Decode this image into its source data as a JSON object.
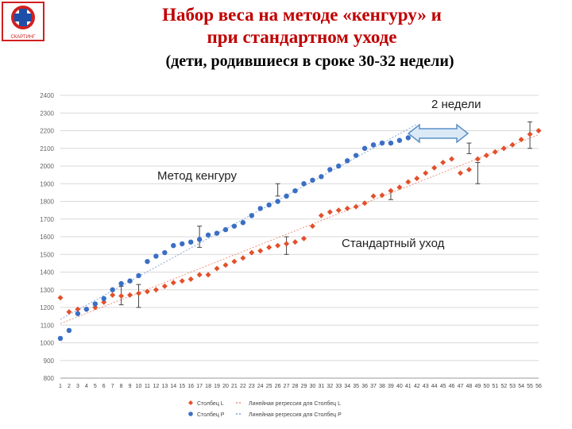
{
  "title_line1": "Набор веса на методе «кенгуру» и",
  "title_line2": "при стандартном уходе",
  "subtitle": "(дети, родившиеся в сроке 30-32 недели)",
  "logo_text": "СКАРТИНГ",
  "annotations": {
    "kangaroo": "Метод кенгуру",
    "standard": "Стандартный уход",
    "gap": "2 недели"
  },
  "colors": {
    "blue": "#3a6fc4",
    "red": "#e2502b",
    "title": "#c00000",
    "arrow": "#9cc3e6"
  },
  "chart_data": {
    "type": "scatter",
    "title": "",
    "xlabel": "",
    "ylabel": "",
    "ylim": [
      800,
      2400
    ],
    "xlim": [
      1,
      56
    ],
    "y_ticks": [
      "800",
      "900",
      "1000",
      "1100",
      "1200",
      "1300",
      "1400",
      "1500",
      "1600",
      "1700",
      "1800",
      "1900",
      "2000",
      "2100",
      "2200",
      "2300",
      "2400"
    ],
    "x_ticks": [
      "1",
      "2",
      "3",
      "4",
      "5",
      "6",
      "7",
      "8",
      "9",
      "10",
      "11",
      "12",
      "13",
      "14",
      "15",
      "16",
      "17",
      "18",
      "19",
      "20",
      "21",
      "22",
      "23",
      "24",
      "25",
      "26",
      "27",
      "28",
      "29",
      "30",
      "31",
      "32",
      "33",
      "34",
      "35",
      "36",
      "37",
      "38",
      "39",
      "40",
      "41",
      "42",
      "43",
      "44",
      "45",
      "46",
      "47",
      "48",
      "49",
      "50",
      "51",
      "52",
      "53",
      "54",
      "55",
      "56"
    ],
    "grid": true,
    "legend_position": "bottom",
    "legend": [
      "Столбец L",
      "Столбец P",
      "Линейная регрессия для Столбец L",
      "Линейная регрессия для Столбец P"
    ],
    "series": [
      {
        "name": "Столбец L",
        "x": [
          1,
          2,
          3,
          4,
          5,
          6,
          7,
          8,
          9,
          10,
          11,
          12,
          13,
          14,
          15,
          16,
          17,
          18,
          19,
          20,
          21,
          22,
          23,
          24,
          25,
          26,
          27,
          28,
          29,
          30,
          31,
          32,
          33,
          34,
          35,
          36,
          37,
          38,
          39,
          40,
          41,
          42,
          43,
          44,
          45,
          46,
          47,
          48,
          49,
          50,
          51,
          52,
          53,
          54,
          55,
          56
        ],
        "y": [
          1255,
          1175,
          1190,
          1190,
          1200,
          1230,
          1270,
          1265,
          1270,
          1280,
          1290,
          1300,
          1320,
          1340,
          1350,
          1360,
          1385,
          1385,
          1420,
          1440,
          1460,
          1480,
          1510,
          1520,
          1540,
          1550,
          1560,
          1570,
          1590,
          1660,
          1720,
          1740,
          1750,
          1760,
          1770,
          1790,
          1830,
          1835,
          1860,
          1880,
          1910,
          1930,
          1960,
          1990,
          2020,
          2040,
          1960,
          1980,
          2040,
          2060,
          2080,
          2100,
          2120,
          2150,
          2180,
          2200
        ]
      },
      {
        "name": "Столбец P",
        "x": [
          1,
          2,
          3,
          4,
          5,
          6,
          7,
          8,
          9,
          10,
          11,
          12,
          13,
          14,
          15,
          16,
          17,
          18,
          19,
          20,
          21,
          22,
          23,
          24,
          25,
          26,
          27,
          28,
          29,
          30,
          31,
          32,
          33,
          34,
          35,
          36,
          37,
          38,
          39,
          40,
          41,
          42
        ],
        "y": [
          1025,
          1070,
          1165,
          1190,
          1220,
          1250,
          1300,
          1335,
          1350,
          1380,
          1460,
          1490,
          1510,
          1550,
          1560,
          1570,
          1585,
          1610,
          1620,
          1640,
          1660,
          1680,
          1720,
          1760,
          1780,
          1800,
          1830,
          1860,
          1900,
          1920,
          1940,
          1980,
          2000,
          2030,
          2060,
          2100,
          2120,
          2130,
          2130,
          2145,
          2160,
          2170
        ]
      }
    ]
  }
}
